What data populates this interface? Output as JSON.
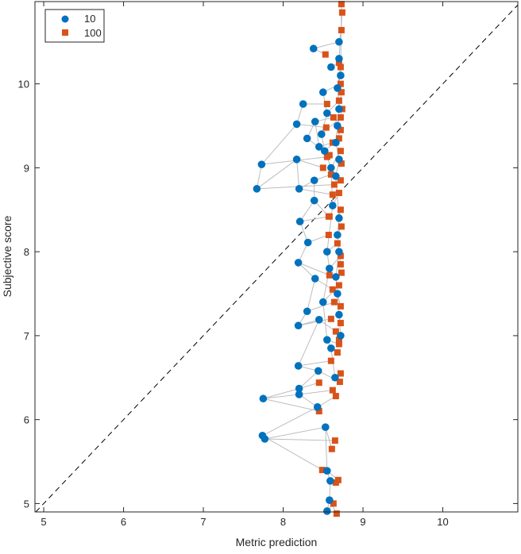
{
  "chart_data": {
    "type": "scatter",
    "title": "",
    "xlabel": "Metric prediction",
    "ylabel": "Subjective score",
    "xlim": [
      4.89,
      10.94
    ],
    "ylim": [
      4.9,
      10.98
    ],
    "xticks": [
      5,
      6,
      7,
      8,
      9,
      10
    ],
    "yticks": [
      5,
      6,
      7,
      8,
      9,
      10
    ],
    "grid": false,
    "reference_line": {
      "type": "y=x",
      "style": "dashed",
      "color": "#000000"
    },
    "legend": {
      "placement": "top-left",
      "entries": [
        "10",
        "100"
      ]
    },
    "series": [
      {
        "name": "10",
        "marker": "circle",
        "color": "#0072BD"
      },
      {
        "name": "100",
        "marker": "square",
        "color": "#D95319"
      }
    ],
    "connector_color": "#BDBDBD",
    "pairs_columns": [
      "x_10",
      "y_10",
      "x_100",
      "y_100"
    ],
    "pairs": [
      [
        8.38,
        10.42,
        8.53,
        10.35
      ],
      [
        8.7,
        10.5,
        8.73,
        10.64
      ],
      [
        8.25,
        9.76,
        8.55,
        9.76
      ],
      [
        8.17,
        9.52,
        8.54,
        9.48
      ],
      [
        7.73,
        9.04,
        8.55,
        9.13
      ],
      [
        7.67,
        8.75,
        8.64,
        8.8
      ],
      [
        8.17,
        9.1,
        8.5,
        9.0
      ],
      [
        8.2,
        8.75,
        8.62,
        8.68
      ],
      [
        8.39,
        8.85,
        8.6,
        8.92
      ],
      [
        8.39,
        8.61,
        8.57,
        8.42
      ],
      [
        8.21,
        8.36,
        8.58,
        8.42
      ],
      [
        8.31,
        8.11,
        8.57,
        8.2
      ],
      [
        8.19,
        7.87,
        8.58,
        7.72
      ],
      [
        8.4,
        7.68,
        8.62,
        7.55
      ],
      [
        8.3,
        7.29,
        8.64,
        7.4
      ],
      [
        8.19,
        7.12,
        8.6,
        7.2
      ],
      [
        8.45,
        7.19,
        8.66,
        7.05
      ],
      [
        8.19,
        6.64,
        8.6,
        6.7
      ],
      [
        8.44,
        6.58,
        8.71,
        6.45
      ],
      [
        8.2,
        6.37,
        8.45,
        6.44
      ],
      [
        7.75,
        6.25,
        8.45,
        6.1
      ],
      [
        8.2,
        6.3,
        8.62,
        6.35
      ],
      [
        8.43,
        6.15,
        8.66,
        6.28
      ],
      [
        7.74,
        5.81,
        8.49,
        5.4
      ],
      [
        7.77,
        5.77,
        8.65,
        5.75
      ],
      [
        8.53,
        5.91,
        8.61,
        5.65
      ],
      [
        8.55,
        5.39,
        8.69,
        5.28
      ],
      [
        8.59,
        5.27,
        8.66,
        5.25
      ],
      [
        8.58,
        5.04,
        8.67,
        4.88
      ],
      [
        8.55,
        4.91,
        8.63,
        5.0
      ],
      [
        8.5,
        9.9,
        8.72,
        10.0
      ],
      [
        8.55,
        9.65,
        8.7,
        9.8
      ],
      [
        8.48,
        9.4,
        8.72,
        9.6
      ],
      [
        8.52,
        9.2,
        8.7,
        9.35
      ],
      [
        8.6,
        9.0,
        8.72,
        9.2
      ],
      [
        8.62,
        8.55,
        8.7,
        8.7
      ],
      [
        8.55,
        8.0,
        8.68,
        8.1
      ],
      [
        8.58,
        7.8,
        8.72,
        7.95
      ],
      [
        8.5,
        7.4,
        8.7,
        7.6
      ],
      [
        8.55,
        6.95,
        8.7,
        6.9
      ],
      [
        8.6,
        6.85,
        8.68,
        6.8
      ],
      [
        8.65,
        6.5,
        8.72,
        6.55
      ],
      [
        8.7,
        10.3,
        8.74,
        10.85
      ],
      [
        8.72,
        10.1,
        8.73,
        10.95
      ],
      [
        8.68,
        9.95,
        8.72,
        10.2
      ],
      [
        8.7,
        9.7,
        8.73,
        9.9
      ],
      [
        8.68,
        9.5,
        8.74,
        9.7
      ],
      [
        8.66,
        9.3,
        8.72,
        9.45
      ],
      [
        8.7,
        9.1,
        8.73,
        9.05
      ],
      [
        8.66,
        8.9,
        8.72,
        8.85
      ],
      [
        8.7,
        8.4,
        8.72,
        8.5
      ],
      [
        8.68,
        8.2,
        8.73,
        8.3
      ],
      [
        8.7,
        8.0,
        8.72,
        7.85
      ],
      [
        8.66,
        7.7,
        8.73,
        7.75
      ],
      [
        8.68,
        7.5,
        8.72,
        7.35
      ],
      [
        8.7,
        7.25,
        8.72,
        7.15
      ],
      [
        8.72,
        7.0,
        8.7,
        6.95
      ],
      [
        8.6,
        10.2,
        8.7,
        10.25
      ],
      [
        8.45,
        9.25,
        8.62,
        9.3
      ],
      [
        8.4,
        9.55,
        8.63,
        9.6
      ],
      [
        8.3,
        9.35,
        8.58,
        9.15
      ]
    ]
  }
}
